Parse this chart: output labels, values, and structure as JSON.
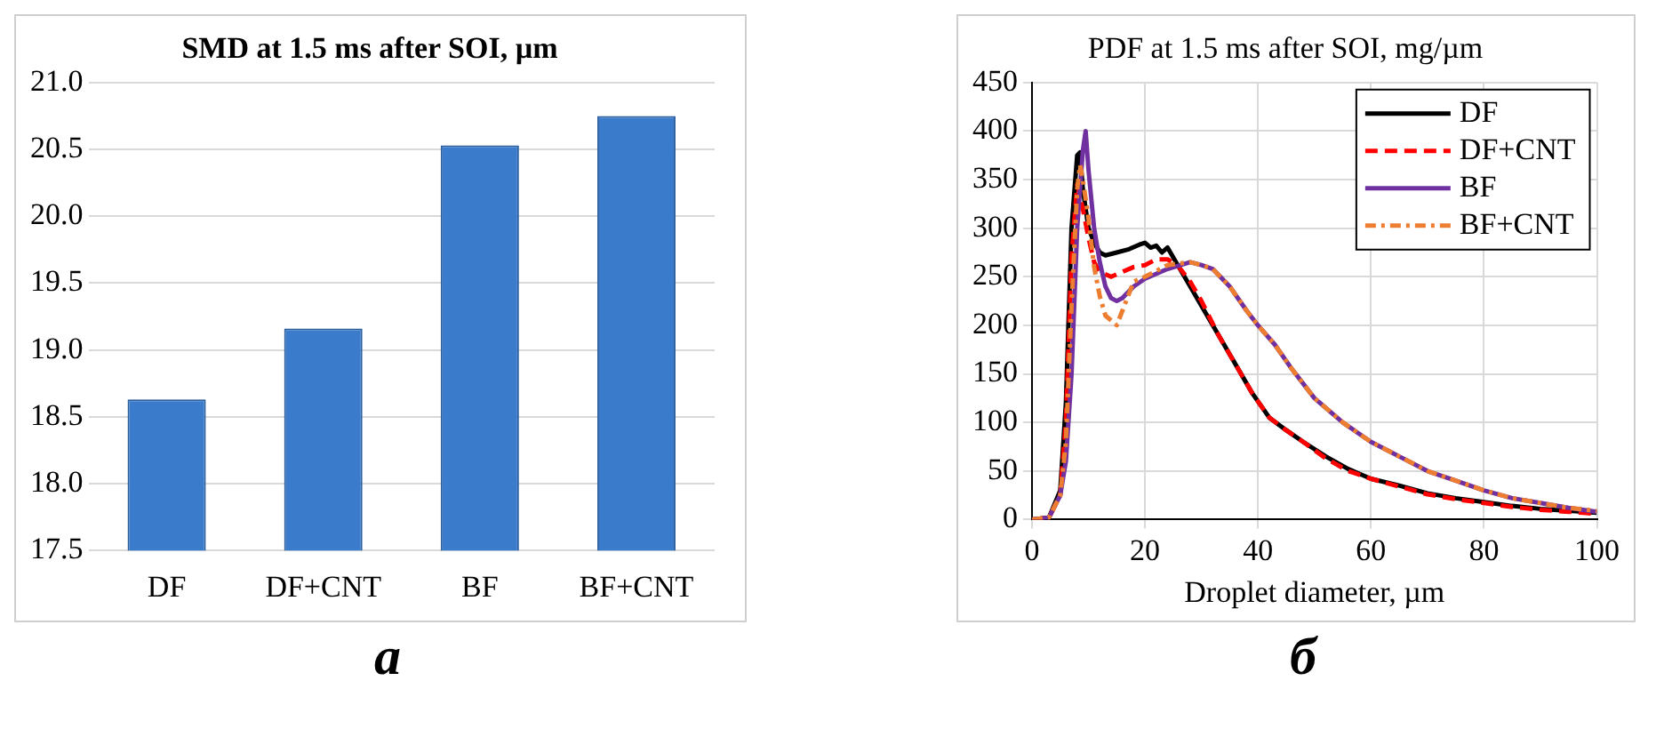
{
  "chart_data": [
    {
      "type": "bar",
      "title": "SMD at 1.5 ms after SOI, µm",
      "categories": [
        "DF",
        "DF+CNT",
        "BF",
        "BF+CNT"
      ],
      "values": [
        18.63,
        19.16,
        20.53,
        20.75
      ],
      "color": "#3b7bcb",
      "ylim": [
        17.5,
        21.0
      ],
      "yticks": [
        {
          "value": 17.5,
          "label": "17.5"
        },
        {
          "value": 18,
          "label": "18.0"
        },
        {
          "value": 18.5,
          "label": "18.5"
        },
        {
          "value": 19,
          "label": "19.0"
        },
        {
          "value": 19.5,
          "label": "19.5"
        },
        {
          "value": 20,
          "label": "20.0"
        },
        {
          "value": 20.5,
          "label": "20.5"
        },
        {
          "value": 21,
          "label": "21.0"
        }
      ],
      "grid": "y",
      "legend": false,
      "annotations": [
        "а"
      ]
    },
    {
      "type": "line",
      "title": "PDF at 1.5 ms after SOI, mg/µm",
      "xlabel": "Droplet diameter, µm",
      "xlim": [
        0,
        100
      ],
      "xticks": [
        0,
        20,
        40,
        60,
        80,
        100
      ],
      "ylim": [
        0,
        450
      ],
      "yticks": [
        0,
        50,
        100,
        150,
        200,
        250,
        300,
        350,
        400,
        450
      ],
      "grid": true,
      "legend": "top right",
      "marker": "none",
      "annotations": [
        "б"
      ],
      "series": [
        {
          "name": "DF",
          "color": "#000000",
          "line_style": "solid",
          "x": [
            0,
            3,
            5,
            6,
            7,
            8,
            8.5,
            9,
            10,
            11,
            12,
            13,
            15,
            17,
            19,
            20,
            21,
            22,
            23,
            24,
            25,
            27,
            30,
            33,
            36,
            39,
            42,
            45,
            48,
            52,
            56,
            60,
            65,
            70,
            75,
            80,
            85,
            90,
            95,
            100
          ],
          "values": [
            0,
            2,
            30,
            120,
            300,
            375,
            378,
            340,
            300,
            285,
            275,
            272,
            275,
            278,
            283,
            285,
            280,
            282,
            275,
            280,
            270,
            250,
            220,
            190,
            160,
            130,
            105,
            92,
            80,
            65,
            52,
            42,
            35,
            27,
            22,
            18,
            14,
            11,
            9,
            7
          ]
        },
        {
          "name": "DF+CNT",
          "color": "#ff0000",
          "line_style": "dashed",
          "x": [
            0,
            3,
            5,
            6,
            7,
            8,
            9,
            10,
            11,
            12,
            14,
            16,
            18,
            20,
            22,
            24,
            26,
            28,
            30,
            33,
            36,
            39,
            42,
            45,
            48,
            52,
            56,
            60,
            65,
            70,
            75,
            80,
            85,
            90,
            95,
            100
          ],
          "values": [
            0,
            2,
            25,
            100,
            270,
            345,
            320,
            290,
            265,
            255,
            250,
            255,
            260,
            262,
            268,
            268,
            260,
            245,
            225,
            190,
            160,
            130,
            105,
            92,
            80,
            63,
            50,
            42,
            34,
            26,
            21,
            17,
            13,
            10,
            8,
            6
          ]
        },
        {
          "name": "BF",
          "color": "#7030a0",
          "line_style": "solid",
          "x": [
            0,
            3,
            5,
            6,
            7,
            8,
            9,
            9.5,
            10,
            11,
            12,
            13,
            14,
            15,
            16,
            18,
            20,
            24,
            28,
            30,
            32,
            35,
            38,
            40,
            43,
            46,
            50,
            55,
            60,
            65,
            70,
            75,
            80,
            85,
            90,
            95,
            100
          ],
          "values": [
            0,
            2,
            25,
            60,
            150,
            300,
            380,
            400,
            360,
            300,
            265,
            240,
            228,
            225,
            228,
            240,
            248,
            258,
            265,
            262,
            258,
            240,
            215,
            200,
            180,
            155,
            125,
            100,
            80,
            65,
            50,
            40,
            30,
            22,
            17,
            12,
            8
          ]
        },
        {
          "name": "BF+CNT",
          "color": "#ed7d31",
          "line_style": "dashdot",
          "x": [
            0,
            3,
            5,
            6,
            7,
            8,
            8.5,
            9,
            10,
            11,
            12,
            13,
            14,
            15,
            16,
            17,
            18,
            20,
            24,
            28,
            30,
            32,
            35,
            38,
            40,
            43,
            46,
            50,
            55,
            60,
            65,
            70,
            75,
            80,
            85,
            90,
            95,
            100
          ],
          "values": [
            0,
            2,
            25,
            80,
            220,
            340,
            365,
            350,
            310,
            260,
            230,
            210,
            205,
            200,
            215,
            230,
            245,
            250,
            262,
            265,
            262,
            258,
            240,
            215,
            200,
            180,
            155,
            125,
            100,
            80,
            65,
            50,
            40,
            30,
            22,
            17,
            12,
            9
          ]
        }
      ]
    }
  ]
}
